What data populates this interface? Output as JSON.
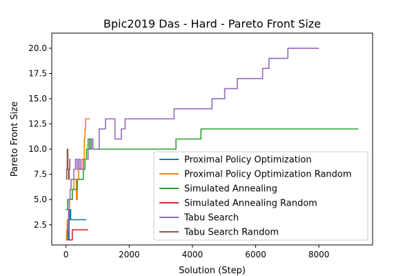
{
  "chart_data": {
    "type": "line",
    "title": "Bpic2019 Das - Hard - Pareto Front Size",
    "xlabel": "Solution (Step)",
    "ylabel": "Pareto Front Size",
    "xlim": [
      -450,
      9700
    ],
    "ylim": [
      0.5,
      21.5
    ],
    "x_ticks": [
      0,
      2000,
      4000,
      6000,
      8000
    ],
    "x_tick_labels": [
      "0",
      "2000",
      "4000",
      "6000",
      "8000"
    ],
    "y_ticks": [
      2.5,
      5.0,
      7.5,
      10.0,
      12.5,
      15.0,
      17.5,
      20.0
    ],
    "y_tick_labels": [
      "2.5",
      "5.0",
      "7.5",
      "10.0",
      "12.5",
      "15.0",
      "17.5",
      "20.0"
    ],
    "grid": false,
    "legend_position": "lower-right",
    "series": [
      {
        "name": "Proximal Policy Optimization",
        "color": "#1f77b4",
        "points": [
          [
            0,
            1
          ],
          [
            30,
            2
          ],
          [
            60,
            3
          ],
          [
            80,
            1
          ],
          [
            100,
            4
          ],
          [
            110,
            3
          ],
          [
            130,
            4
          ],
          [
            150,
            3
          ],
          [
            300,
            3
          ],
          [
            650,
            3
          ]
        ]
      },
      {
        "name": "Proximal Policy Optimization Random",
        "color": "#ff7f0e",
        "points": [
          [
            0,
            1
          ],
          [
            20,
            2
          ],
          [
            40,
            3
          ],
          [
            80,
            4
          ],
          [
            110,
            5
          ],
          [
            160,
            5
          ],
          [
            200,
            6
          ],
          [
            250,
            7
          ],
          [
            300,
            7
          ],
          [
            330,
            5
          ],
          [
            360,
            7
          ],
          [
            400,
            8
          ],
          [
            450,
            8
          ],
          [
            500,
            9
          ],
          [
            550,
            9
          ],
          [
            580,
            11
          ],
          [
            600,
            12
          ],
          [
            620,
            13
          ],
          [
            760,
            13
          ]
        ]
      },
      {
        "name": "Simulated Annealing",
        "color": "#2ca02c",
        "points": [
          [
            0,
            4
          ],
          [
            50,
            5
          ],
          [
            100,
            5
          ],
          [
            150,
            5
          ],
          [
            200,
            6
          ],
          [
            300,
            6
          ],
          [
            350,
            7
          ],
          [
            500,
            7
          ],
          [
            550,
            8
          ],
          [
            600,
            9
          ],
          [
            650,
            10
          ],
          [
            700,
            11
          ],
          [
            750,
            10
          ],
          [
            800,
            11
          ],
          [
            850,
            10
          ],
          [
            3450,
            10
          ],
          [
            3480,
            11
          ],
          [
            4250,
            11
          ],
          [
            4270,
            12
          ],
          [
            9250,
            12
          ]
        ]
      },
      {
        "name": "Simulated Annealing Random",
        "color": "#d62728",
        "points": [
          [
            0,
            1
          ],
          [
            50,
            1
          ],
          [
            100,
            1
          ],
          [
            180,
            1
          ],
          [
            200,
            2
          ],
          [
            300,
            2
          ],
          [
            450,
            2
          ],
          [
            700,
            2
          ]
        ]
      },
      {
        "name": "Tabu Search",
        "color": "#9467bd",
        "points": [
          [
            0,
            1
          ],
          [
            50,
            2
          ],
          [
            80,
            4
          ],
          [
            100,
            5
          ],
          [
            130,
            6
          ],
          [
            160,
            7
          ],
          [
            200,
            7
          ],
          [
            250,
            8
          ],
          [
            300,
            9
          ],
          [
            350,
            8
          ],
          [
            400,
            9
          ],
          [
            450,
            8
          ],
          [
            500,
            8
          ],
          [
            550,
            9
          ],
          [
            600,
            9
          ],
          [
            700,
            10
          ],
          [
            750,
            11
          ],
          [
            800,
            11
          ],
          [
            850,
            10
          ],
          [
            1000,
            10
          ],
          [
            1050,
            12
          ],
          [
            1200,
            12
          ],
          [
            1250,
            13
          ],
          [
            1500,
            13
          ],
          [
            1550,
            11
          ],
          [
            1700,
            11
          ],
          [
            1750,
            12
          ],
          [
            1850,
            12
          ],
          [
            1870,
            13
          ],
          [
            3400,
            13
          ],
          [
            3420,
            14
          ],
          [
            4600,
            14
          ],
          [
            4620,
            15
          ],
          [
            5000,
            15
          ],
          [
            5020,
            16
          ],
          [
            5400,
            16
          ],
          [
            5420,
            17
          ],
          [
            6200,
            17
          ],
          [
            6220,
            18
          ],
          [
            6400,
            18
          ],
          [
            6420,
            19
          ],
          [
            7000,
            19
          ],
          [
            7020,
            20
          ],
          [
            8000,
            20
          ]
        ]
      },
      {
        "name": "Tabu Search Random",
        "color": "#8c564b",
        "points": [
          [
            0,
            7
          ],
          [
            20,
            8
          ],
          [
            40,
            10
          ],
          [
            60,
            8
          ],
          [
            80,
            7
          ],
          [
            100,
            8
          ],
          [
            120,
            9
          ],
          [
            140,
            9
          ]
        ]
      }
    ]
  }
}
